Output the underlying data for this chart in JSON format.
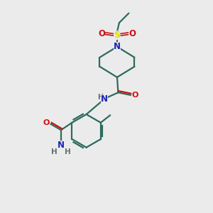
{
  "bg_color": "#ebebeb",
  "bond_color": "#2d6b5e",
  "N_color": "#2222bb",
  "O_color": "#cc1111",
  "S_color": "#dddd00",
  "H_color": "#607070",
  "line_width": 1.6,
  "fig_w": 3.0,
  "fig_h": 3.0,
  "dpi": 100,
  "xlim": [
    0,
    10
  ],
  "ylim": [
    0,
    10
  ]
}
